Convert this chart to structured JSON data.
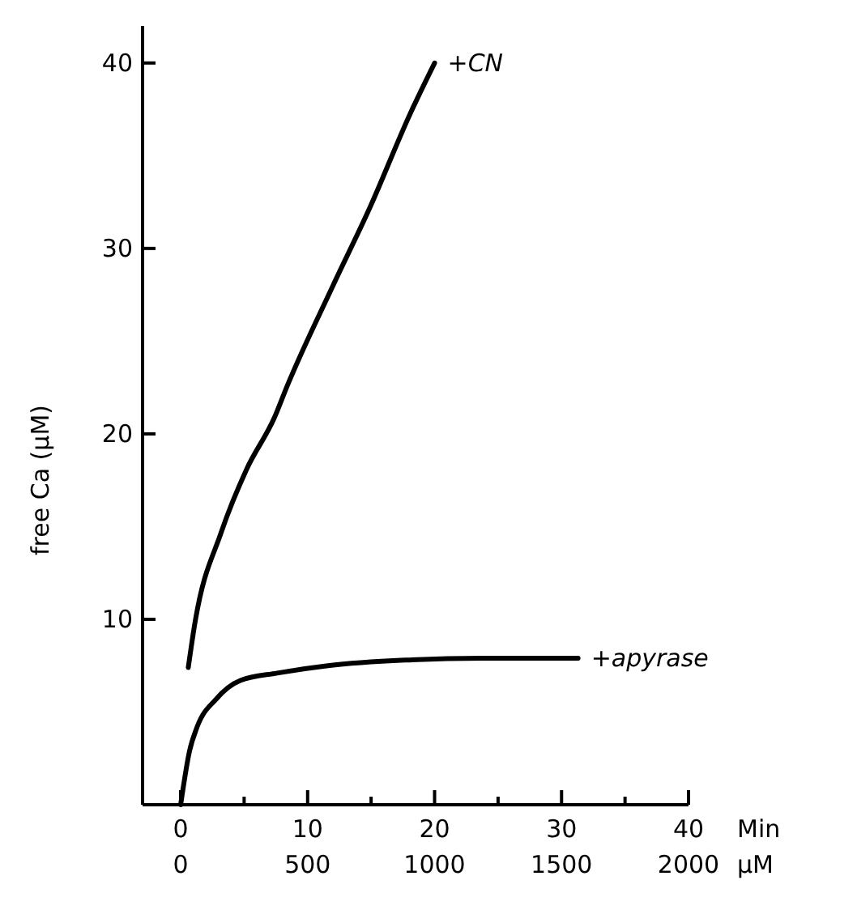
{
  "chart_data": {
    "type": "line",
    "xlabel": "Min",
    "x2label": "μM",
    "ylabel": "free Ca (μM)",
    "xlim": [
      -3,
      40
    ],
    "xticks": [
      0,
      {
        "value": 5,
        "label": null
      },
      10,
      {
        "value": 15,
        "label": null
      },
      20,
      {
        "value": 25,
        "label": null
      },
      30,
      {
        "value": 35,
        "label": null
      },
      40
    ],
    "x2lim": [
      -150,
      2000
    ],
    "x2ticks": [
      0,
      500,
      1000,
      1500,
      2000
    ],
    "ylim": [
      0,
      42
    ],
    "yticks": [
      10,
      20,
      30,
      40
    ],
    "series": [
      {
        "name": "+CN",
        "color": "#000000",
        "x": [
          0.6,
          1.1,
          3.2,
          5.2,
          7.4,
          8.4,
          12,
          14.9,
          18.1,
          20
        ],
        "values": [
          7.4,
          9.7,
          14.7,
          18.1,
          20.9,
          22.6,
          28,
          32.2,
          37.3,
          40
        ]
      },
      {
        "name": "+apyrase",
        "color": "#000000",
        "x": [
          0,
          0.7,
          1.3,
          2.8,
          4.7,
          7.6,
          11.6,
          17.7,
          23.8,
          31.3
        ],
        "values": [
          0,
          2.9,
          4.2,
          5.7,
          6.7,
          7.1,
          7.5,
          7.8,
          7.9,
          7.9
        ]
      }
    ]
  }
}
